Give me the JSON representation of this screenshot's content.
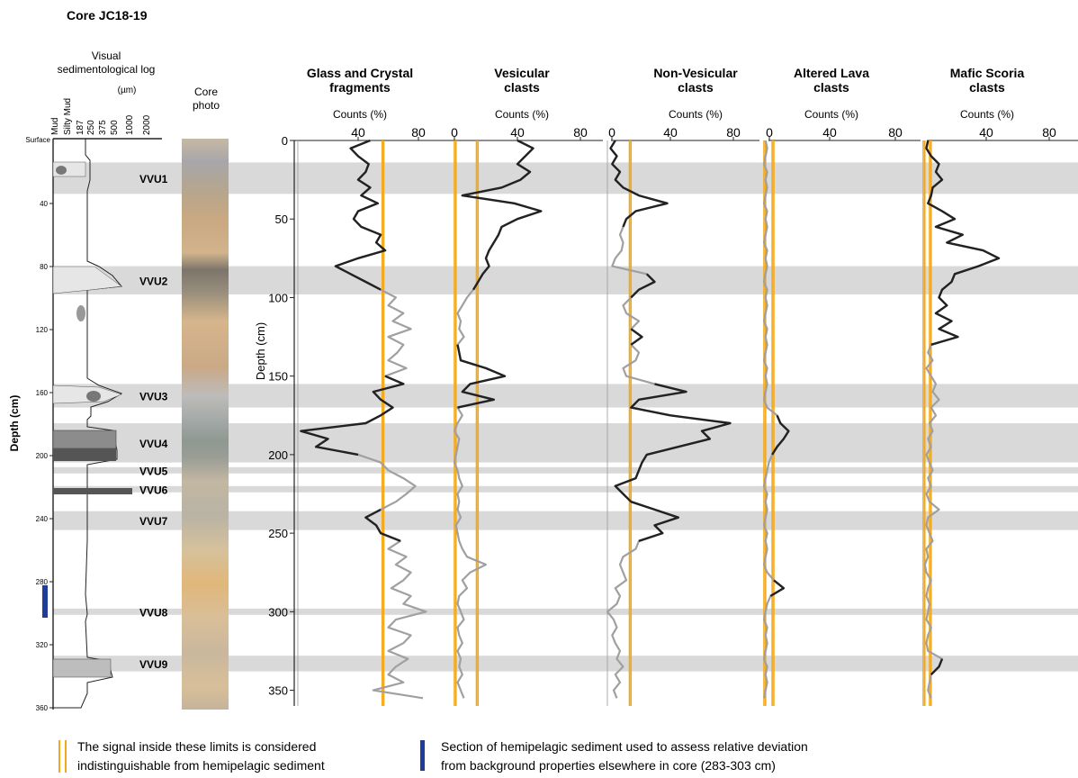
{
  "title": "Core JC18-19",
  "log": {
    "header": "Visual sedimentological log",
    "unit": "(µm)",
    "grain_labels": [
      "Mud",
      "Silty Mud",
      "187",
      "250",
      "375",
      "500",
      "1000",
      "2000"
    ],
    "surface_label": "Surface",
    "depth_ticks": [
      "40",
      "80",
      "120",
      "160",
      "200",
      "240",
      "280",
      "320",
      "360"
    ],
    "ylabel": "Depth (cm)"
  },
  "core_photo_label": "Core photo",
  "units": [
    {
      "name": "VVU1",
      "top": 14,
      "bottom": 34
    },
    {
      "name": "VVU2",
      "top": 80,
      "bottom": 98
    },
    {
      "name": "VVU3",
      "top": 155,
      "bottom": 170
    },
    {
      "name": "VVU4",
      "top": 180,
      "bottom": 205
    },
    {
      "name": "VVU5",
      "top": 208,
      "bottom": 212
    },
    {
      "name": "VVU6",
      "top": 220,
      "bottom": 224
    },
    {
      "name": "VVU7",
      "top": 236,
      "bottom": 248
    },
    {
      "name": "VVU8",
      "top": 298,
      "bottom": 302
    },
    {
      "name": "VVU9",
      "top": 328,
      "bottom": 338
    }
  ],
  "depth_axis": {
    "label": "Depth (cm)",
    "ticks": [
      "0",
      "50",
      "100",
      "150",
      "200",
      "250",
      "300",
      "350"
    ],
    "range": [
      0,
      360
    ]
  },
  "legend": {
    "limits_line1": "The signal inside these limits is considered",
    "limits_line2": "indistinguishable from hemipelagic sediment",
    "section_line1": "Section of hemipelagic sediment used to assess relative deviation",
    "section_line2": "from background properties elsewhere in core (283-303 cm)"
  },
  "colors": {
    "highlight": "#222222",
    "background_signal": "#a0a0a0",
    "limits": "#f2a81d",
    "band": "#d9d9d9",
    "section_bar": "#1f3d99"
  },
  "chart_data": [
    {
      "type": "line",
      "title_lines": [
        "Glass and Crystal",
        "fragments"
      ],
      "xlabel": "Counts (%)",
      "x_ticks": [
        "40",
        "80"
      ],
      "xlim": [
        0,
        100
      ],
      "limits": [
        56,
        57
      ],
      "depths": [
        0,
        5,
        10,
        15,
        20,
        25,
        30,
        35,
        40,
        45,
        50,
        55,
        60,
        65,
        70,
        75,
        80,
        85,
        90,
        95,
        100,
        105,
        110,
        115,
        120,
        125,
        130,
        135,
        140,
        145,
        150,
        155,
        160,
        165,
        170,
        175,
        180,
        185,
        190,
        195,
        200,
        205,
        210,
        215,
        220,
        225,
        230,
        235,
        240,
        245,
        250,
        255,
        260,
        265,
        270,
        275,
        280,
        285,
        290,
        295,
        300,
        305,
        310,
        315,
        320,
        325,
        330,
        335,
        340,
        345,
        350,
        355
      ],
      "values": [
        48,
        35,
        40,
        47,
        45,
        40,
        48,
        42,
        53,
        40,
        37,
        42,
        55,
        52,
        58,
        40,
        25,
        35,
        45,
        55,
        65,
        60,
        70,
        63,
        75,
        60,
        70,
        66,
        60,
        72,
        58,
        70,
        50,
        55,
        63,
        55,
        45,
        2,
        20,
        12,
        40,
        55,
        60,
        70,
        78,
        72,
        65,
        55,
        45,
        52,
        55,
        68,
        60,
        72,
        65,
        75,
        70,
        62,
        75,
        70,
        85,
        65,
        60,
        75,
        70,
        60,
        73,
        65,
        60,
        70,
        50,
        83
      ],
      "highlighted": [
        [
          0,
          98
        ],
        [
          150,
          200
        ],
        [
          235,
          255
        ]
      ]
    },
    {
      "type": "line",
      "title_lines": [
        "Vesicular",
        "clasts"
      ],
      "xlabel": "Counts (%)",
      "x_ticks": [
        "0",
        "40",
        "80"
      ],
      "xlim": [
        0,
        100
      ],
      "limits": [
        0,
        1,
        14,
        15
      ],
      "depths": [
        0,
        5,
        10,
        15,
        20,
        25,
        30,
        35,
        40,
        45,
        50,
        55,
        60,
        65,
        70,
        75,
        80,
        85,
        90,
        95,
        100,
        105,
        110,
        115,
        120,
        125,
        130,
        135,
        140,
        145,
        150,
        155,
        160,
        165,
        170,
        175,
        180,
        185,
        190,
        195,
        200,
        205,
        210,
        215,
        220,
        225,
        230,
        235,
        240,
        245,
        250,
        255,
        260,
        265,
        270,
        275,
        280,
        285,
        290,
        295,
        300,
        305,
        310,
        315,
        320,
        325,
        330,
        335,
        340,
        345,
        350,
        355
      ],
      "values": [
        40,
        50,
        45,
        40,
        48,
        42,
        30,
        5,
        38,
        55,
        40,
        30,
        28,
        25,
        22,
        20,
        22,
        18,
        15,
        12,
        8,
        5,
        2,
        4,
        3,
        6,
        2,
        3,
        4,
        20,
        32,
        10,
        5,
        25,
        2,
        5,
        2,
        0,
        3,
        2,
        1,
        0,
        2,
        3,
        5,
        2,
        3,
        2,
        4,
        1,
        2,
        3,
        5,
        8,
        20,
        10,
        5,
        8,
        3,
        2,
        4,
        6,
        2,
        3,
        5,
        2,
        4,
        3,
        5,
        2,
        4,
        6
      ],
      "highlighted": [
        [
          0,
          98
        ],
        [
          130,
          170
        ],
        [
          266,
          272
        ]
      ]
    },
    {
      "type": "line",
      "title_lines": [
        "Non-Vesicular",
        "clasts"
      ],
      "xlabel": "Counts (%)",
      "x_ticks": [
        "0",
        "40",
        "80"
      ],
      "xlim": [
        0,
        100
      ],
      "limits": [
        14,
        15
      ],
      "depths": [
        0,
        5,
        10,
        15,
        20,
        25,
        30,
        35,
        40,
        45,
        50,
        55,
        60,
        65,
        70,
        75,
        80,
        85,
        90,
        95,
        100,
        105,
        110,
        115,
        120,
        125,
        130,
        135,
        140,
        145,
        150,
        155,
        160,
        165,
        170,
        175,
        180,
        185,
        190,
        195,
        200,
        205,
        210,
        215,
        220,
        225,
        230,
        235,
        240,
        245,
        250,
        255,
        260,
        265,
        270,
        275,
        280,
        285,
        290,
        295,
        300,
        305,
        310,
        315,
        320,
        325,
        330,
        335,
        340,
        345,
        350,
        355
      ],
      "values": [
        5,
        2,
        6,
        3,
        8,
        5,
        10,
        20,
        38,
        18,
        12,
        10,
        8,
        10,
        9,
        5,
        3,
        25,
        30,
        20,
        15,
        10,
        12,
        20,
        15,
        22,
        15,
        20,
        18,
        10,
        12,
        30,
        50,
        20,
        15,
        40,
        78,
        60,
        65,
        45,
        25,
        22,
        20,
        18,
        5,
        10,
        15,
        30,
        45,
        30,
        35,
        20,
        18,
        10,
        8,
        10,
        12,
        5,
        8,
        6,
        0,
        4,
        6,
        3,
        5,
        8,
        6,
        10,
        5,
        8,
        4,
        6
      ],
      "highlighted": [
        [
          0,
          55
        ],
        [
          85,
          100
        ],
        [
          120,
          130
        ],
        [
          155,
          255
        ]
      ]
    },
    {
      "type": "line",
      "title_lines": [
        "Altered Lava",
        "clasts"
      ],
      "xlabel": "Counts (%)",
      "x_ticks": [
        "0",
        "40",
        "80"
      ],
      "xlim": [
        0,
        100
      ],
      "limits": [
        0,
        1,
        5,
        6
      ],
      "depths": [
        0,
        5,
        10,
        15,
        20,
        25,
        30,
        35,
        40,
        45,
        50,
        55,
        60,
        65,
        70,
        75,
        80,
        85,
        90,
        95,
        100,
        105,
        110,
        115,
        120,
        125,
        130,
        135,
        140,
        145,
        150,
        155,
        160,
        165,
        170,
        175,
        180,
        185,
        190,
        195,
        200,
        205,
        210,
        215,
        220,
        225,
        230,
        235,
        240,
        245,
        250,
        255,
        260,
        265,
        270,
        275,
        280,
        285,
        290,
        295,
        300,
        305,
        310,
        315,
        320,
        325,
        330,
        335,
        340,
        345,
        350,
        355
      ],
      "values": [
        1,
        2,
        1,
        0,
        2,
        1,
        2,
        1,
        0,
        2,
        1,
        2,
        1,
        0,
        2,
        1,
        2,
        1,
        0,
        2,
        1,
        2,
        1,
        0,
        2,
        1,
        2,
        1,
        0,
        2,
        1,
        2,
        1,
        0,
        2,
        8,
        10,
        15,
        12,
        8,
        5,
        3,
        2,
        1,
        0,
        2,
        1,
        2,
        1,
        0,
        2,
        1,
        2,
        1,
        0,
        2,
        6,
        12,
        4,
        2,
        1,
        0,
        2,
        1,
        2,
        1,
        0,
        2,
        1,
        2,
        1,
        0
      ],
      "highlighted": [
        [
          172,
          200
        ],
        [
          276,
          290
        ]
      ]
    },
    {
      "type": "line",
      "title_lines": [
        "Mafic Scoria",
        "clasts"
      ],
      "xlabel": "Counts (%)",
      "x_ticks": [
        "40",
        "80"
      ],
      "xlim": [
        0,
        100
      ],
      "limits": [
        0,
        1,
        4,
        5
      ],
      "depths": [
        0,
        5,
        10,
        15,
        20,
        25,
        30,
        35,
        40,
        45,
        50,
        55,
        60,
        65,
        70,
        75,
        80,
        85,
        90,
        95,
        100,
        105,
        110,
        115,
        120,
        125,
        130,
        135,
        140,
        145,
        150,
        155,
        160,
        165,
        170,
        175,
        180,
        185,
        190,
        195,
        200,
        205,
        210,
        215,
        220,
        225,
        230,
        235,
        240,
        245,
        250,
        255,
        260,
        265,
        270,
        275,
        280,
        285,
        290,
        295,
        300,
        305,
        310,
        315,
        320,
        325,
        330,
        335,
        340,
        345,
        350,
        355
      ],
      "values": [
        3,
        2,
        5,
        10,
        8,
        12,
        6,
        5,
        3,
        12,
        20,
        8,
        25,
        15,
        38,
        48,
        35,
        20,
        18,
        12,
        10,
        15,
        8,
        18,
        10,
        22,
        5,
        3,
        6,
        2,
        5,
        8,
        6,
        10,
        5,
        8,
        4,
        6,
        3,
        5,
        2,
        4,
        6,
        3,
        5,
        2,
        4,
        10,
        3,
        2,
        4,
        6,
        2,
        3,
        1,
        2,
        5,
        3,
        2,
        4,
        3,
        2,
        5,
        3,
        2,
        3,
        12,
        10,
        5,
        4,
        3,
        5
      ],
      "highlighted": [
        [
          0,
          130
        ],
        [
          330,
          340
        ]
      ]
    }
  ]
}
